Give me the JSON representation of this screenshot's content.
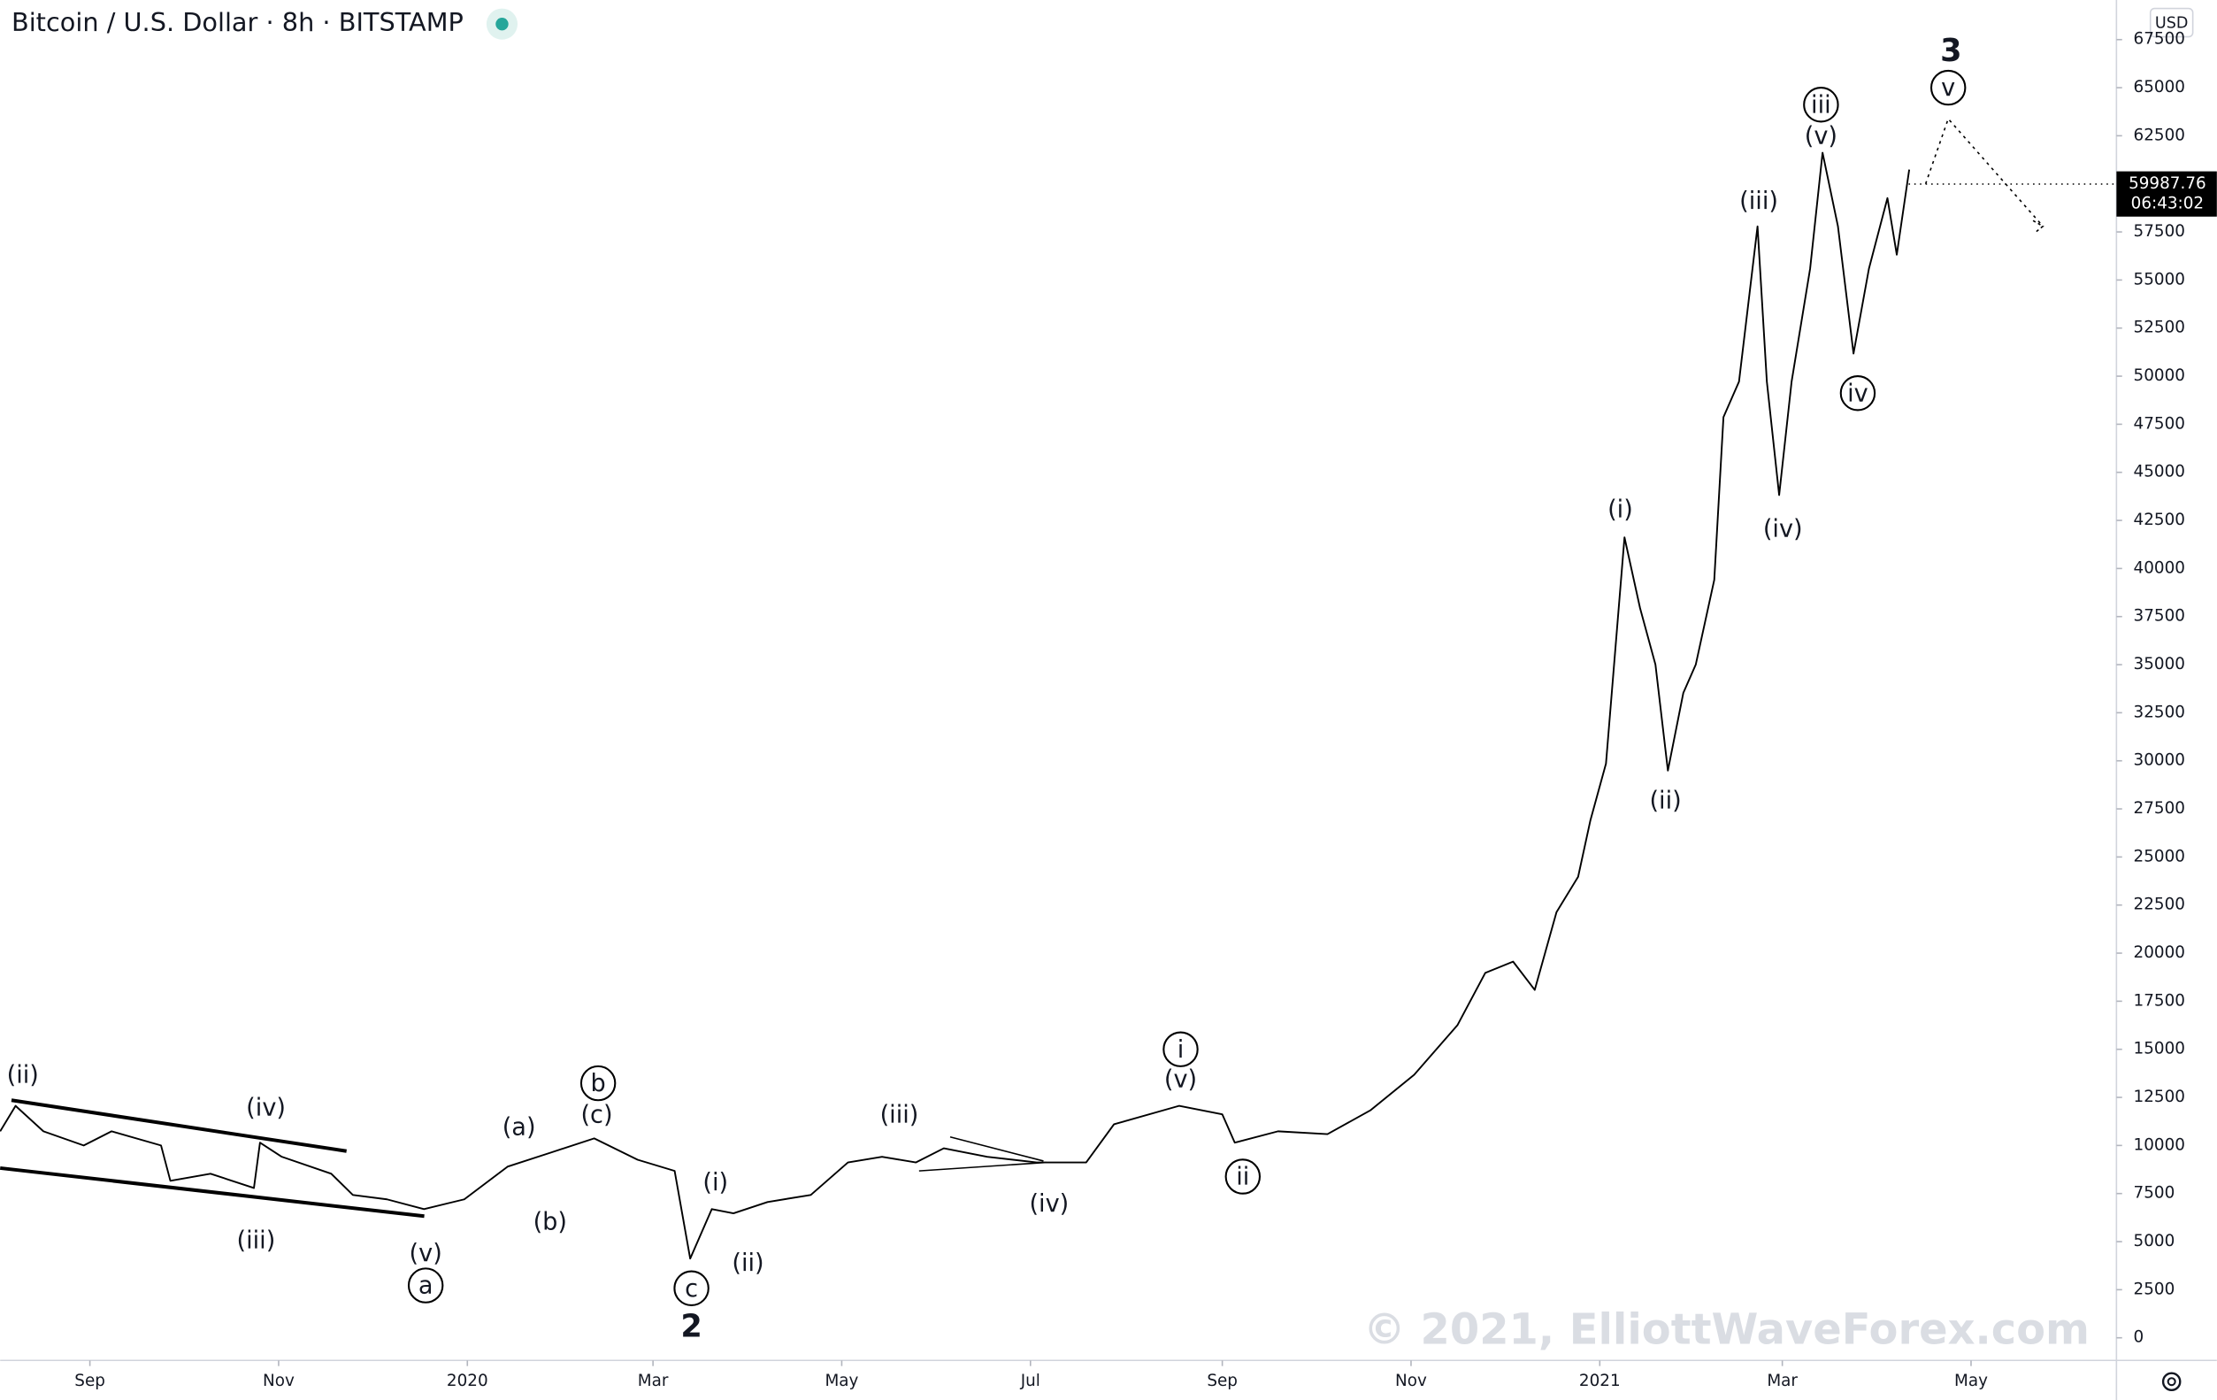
{
  "chart_data": {
    "type": "line",
    "title": "Bitcoin / U.S. Dollar · 8h · BITSTAMP",
    "currency": "USD",
    "watermark": "© 2021, ElliottWaveForex.com",
    "last_price": 59987.76,
    "countdown": "06:43:02",
    "xlim": [
      "2019-08-03",
      "2021-06-17"
    ],
    "ylim": [
      -1176,
      69559
    ],
    "xticks": [
      {
        "value": "2019-09-01",
        "label": "Sep"
      },
      {
        "value": "2019-11-01",
        "label": "Nov"
      },
      {
        "value": "2020-01-01",
        "label": "2020"
      },
      {
        "value": "2020-03-01",
        "label": "Mar"
      },
      {
        "value": "2020-05-01",
        "label": "May"
      },
      {
        "value": "2020-07-01",
        "label": "Jul"
      },
      {
        "value": "2020-09-01",
        "label": "Sep"
      },
      {
        "value": "2020-11-01",
        "label": "Nov"
      },
      {
        "value": "2021-01-01",
        "label": "2021"
      },
      {
        "value": "2021-03-01",
        "label": "Mar"
      },
      {
        "value": "2021-05-01",
        "label": "May"
      }
    ],
    "yticks": [
      0,
      2500,
      5000,
      7500,
      10000,
      12500,
      15000,
      17500,
      20000,
      22500,
      25000,
      27500,
      30000,
      32500,
      35000,
      37500,
      40000,
      42500,
      45000,
      47500,
      50000,
      52500,
      55000,
      57500,
      60000,
      62500,
      65000,
      67500
    ],
    "series": [
      {
        "name": "BTCUSD",
        "color": "#000000",
        "x": [
          "2019-08-03",
          "2019-08-08",
          "2019-08-17",
          "2019-08-30",
          "2019-09-08",
          "2019-09-24",
          "2019-09-27",
          "2019-10-10",
          "2019-10-24",
          "2019-10-26",
          "2019-11-02",
          "2019-11-18",
          "2019-11-25",
          "2019-12-06",
          "2019-12-18",
          "2019-12-31",
          "2020-01-14",
          "2020-01-28",
          "2020-02-11",
          "2020-02-25",
          "2020-03-08",
          "2020-03-13",
          "2020-03-20",
          "2020-03-27",
          "2020-04-07",
          "2020-04-21",
          "2020-05-03",
          "2020-05-14",
          "2020-05-25",
          "2020-06-03",
          "2020-06-17",
          "2020-07-03",
          "2020-07-19",
          "2020-07-28",
          "2020-08-18",
          "2020-09-01",
          "2020-09-05",
          "2020-09-19",
          "2020-10-05",
          "2020-10-19",
          "2020-11-02",
          "2020-11-16",
          "2020-11-25",
          "2020-12-04",
          "2020-12-11",
          "2020-12-18",
          "2020-12-25",
          "2020-12-29",
          "2021-01-03",
          "2021-01-09",
          "2021-01-14",
          "2021-01-19",
          "2021-01-23",
          "2021-01-28",
          "2021-02-01",
          "2021-02-07",
          "2021-02-10",
          "2021-02-15",
          "2021-02-21",
          "2021-02-24",
          "2021-02-28",
          "2021-03-04",
          "2021-03-10",
          "2021-03-14",
          "2021-03-19",
          "2021-03-24",
          "2021-03-29",
          "2021-04-04",
          "2021-04-07",
          "2021-04-11"
        ],
        "values": [
          10735,
          12060,
          10735,
          10000,
          10735,
          10000,
          8160,
          8530,
          7790,
          10150,
          9410,
          8530,
          7430,
          7200,
          6690,
          7200,
          8900,
          9630,
          10370,
          9260,
          8680,
          4120,
          6690,
          6470,
          7060,
          7430,
          9120,
          9410,
          9120,
          9850,
          9410,
          9120,
          9120,
          11100,
          12060,
          11620,
          10150,
          10735,
          10590,
          11840,
          13680,
          16250,
          18970,
          19560,
          18090,
          22130,
          23970,
          26910,
          29850,
          41620,
          37940,
          35000,
          29490,
          33530,
          35000,
          39410,
          47870,
          49710,
          57790,
          49710,
          43820,
          49710,
          55590,
          61620,
          57790,
          51180,
          55590,
          59260,
          56320,
          60740
        ]
      }
    ],
    "annotations": [
      {
        "text": "(ii)",
        "circled": false
      },
      {
        "text": "(iv)",
        "circled": false
      },
      {
        "text": "(iii)",
        "circled": false
      },
      {
        "text": "(v)",
        "circled": false
      },
      {
        "text": "a",
        "circled": true
      },
      {
        "text": "(a)",
        "circled": false
      },
      {
        "text": "(b)",
        "circled": false
      },
      {
        "text": "b",
        "circled": true
      },
      {
        "text": "(c)",
        "circled": false
      },
      {
        "text": "(i)",
        "circled": false
      },
      {
        "text": "(ii)",
        "circled": false
      },
      {
        "text": "c",
        "circled": true
      },
      {
        "text": "2",
        "circled": false
      },
      {
        "text": "(iii)",
        "circled": false
      },
      {
        "text": "(iv)",
        "circled": false
      },
      {
        "text": "i",
        "circled": true
      },
      {
        "text": "(v)",
        "circled": false
      },
      {
        "text": "ii",
        "circled": true
      },
      {
        "text": "(i)",
        "circled": false
      },
      {
        "text": "(ii)",
        "circled": false
      },
      {
        "text": "(iii)",
        "circled": false
      },
      {
        "text": "(iv)",
        "circled": false
      },
      {
        "text": "iii",
        "circled": true
      },
      {
        "text": "(v)",
        "circled": false
      },
      {
        "text": "iv",
        "circled": true
      },
      {
        "text": "v",
        "circled": true
      },
      {
        "text": "3",
        "circled": false
      }
    ]
  }
}
